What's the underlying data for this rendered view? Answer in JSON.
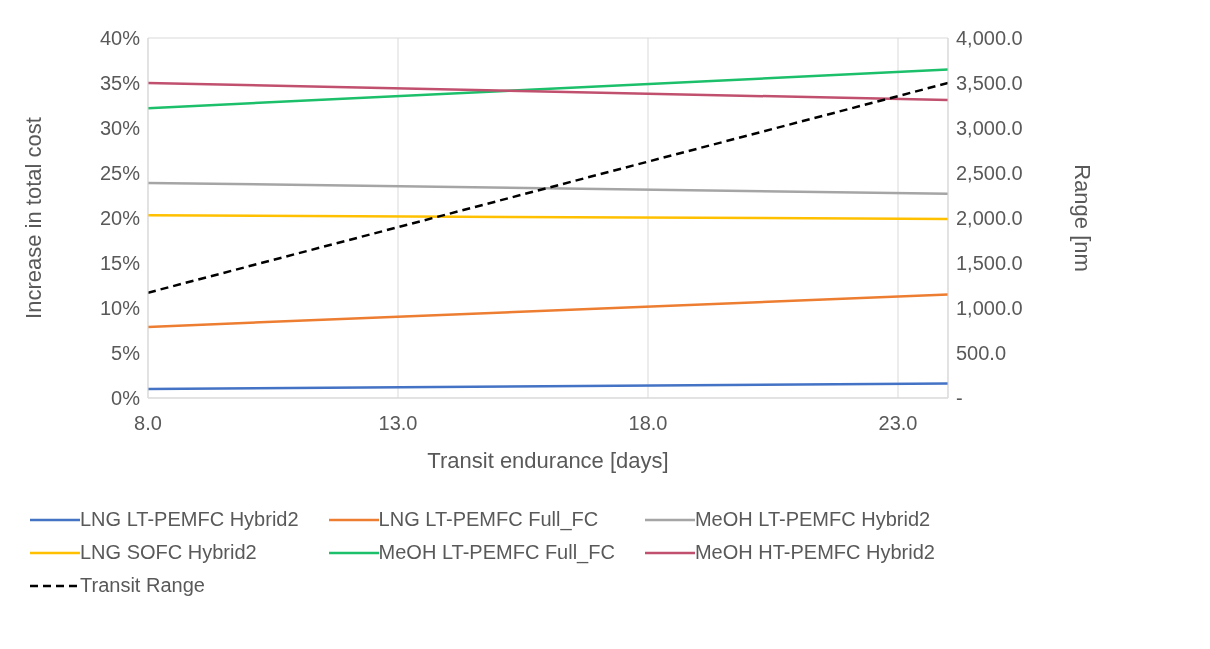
{
  "chart_data": {
    "type": "line",
    "xlabel": "Transit endurance  [days]",
    "ylabel": "Increase in total cost",
    "y2label": "Range [nm",
    "x": [
      8,
      24
    ],
    "xlim": [
      8,
      24
    ],
    "xticks": [
      {
        "value": 8,
        "label": "8.0"
      },
      {
        "value": 13,
        "label": "13.0"
      },
      {
        "value": 18,
        "label": "18.0"
      },
      {
        "value": 23,
        "label": "23.0"
      }
    ],
    "ylim": [
      0,
      40
    ],
    "yticks": [
      {
        "value": 0,
        "label": "0%"
      },
      {
        "value": 5,
        "label": "5%"
      },
      {
        "value": 10,
        "label": "10%"
      },
      {
        "value": 15,
        "label": "15%"
      },
      {
        "value": 20,
        "label": "20%"
      },
      {
        "value": 25,
        "label": "25%"
      },
      {
        "value": 30,
        "label": "30%"
      },
      {
        "value": 35,
        "label": "35%"
      },
      {
        "value": 40,
        "label": "40%"
      }
    ],
    "y2lim": [
      0,
      4000
    ],
    "y2ticks": [
      {
        "value": 0,
        "label": "-"
      },
      {
        "value": 500,
        "label": "500.0"
      },
      {
        "value": 1000,
        "label": "1,000.0"
      },
      {
        "value": 1500,
        "label": "1,500.0"
      },
      {
        "value": 2000,
        "label": "2,000.0"
      },
      {
        "value": 2500,
        "label": "2,500.0"
      },
      {
        "value": 3000,
        "label": "3,000.0"
      },
      {
        "value": 3500,
        "label": "3,500.0"
      },
      {
        "value": 4000,
        "label": "4,000.0"
      }
    ],
    "series": [
      {
        "name": "LNG LT-PEMFC Hybrid2",
        "color": "#4472c4",
        "values": [
          1.0,
          1.6
        ]
      },
      {
        "name": "LNG LT-PEMFC Full_FC",
        "color": "#ed7d31",
        "values": [
          7.9,
          11.5
        ]
      },
      {
        "name": "MeOH LT-PEMFC Hybrid2",
        "color": "#a5a5a5",
        "values": [
          23.9,
          22.7
        ]
      },
      {
        "name": "LNG SOFC Hybrid2",
        "color": "#ffc000",
        "values": [
          20.3,
          19.9
        ]
      },
      {
        "name": "MeOH LT-PEMFC Full_FC",
        "color": "#1cbf6a",
        "values": [
          32.2,
          36.5
        ]
      },
      {
        "name": "MeOH HT-PEMFC Hybrid2",
        "color": "#c0506e",
        "values": [
          35.0,
          33.1
        ]
      },
      {
        "name": "Transit Range",
        "color": "#000000",
        "values": [
          1170,
          3500
        ],
        "axis": "y2",
        "line_style": "dashed"
      }
    ],
    "grid": true,
    "legend": "bottom",
    "marker": "none",
    "line_style": "solid"
  }
}
